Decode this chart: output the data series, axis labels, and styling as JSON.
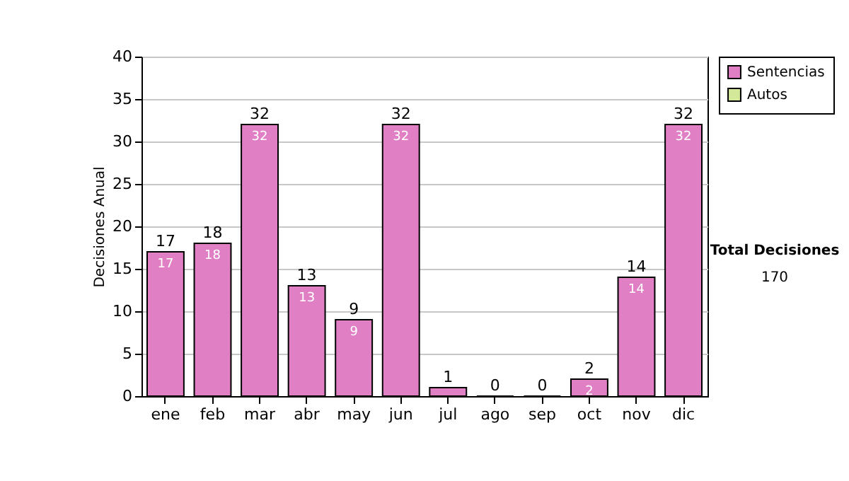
{
  "chart_data": {
    "type": "bar",
    "ylabel": "Decisiones Anual",
    "categories": [
      "ene",
      "feb",
      "mar",
      "abr",
      "may",
      "jun",
      "jul",
      "ago",
      "sep",
      "oct",
      "nov",
      "dic"
    ],
    "series": [
      {
        "name": "Sentencias",
        "color": "#e07fc4",
        "values": [
          17,
          18,
          32,
          13,
          9,
          32,
          1,
          0,
          0,
          2,
          14,
          32
        ],
        "value_labels": [
          "17",
          "18",
          "32",
          "13",
          "9",
          "32",
          null,
          null,
          null,
          "2",
          "14",
          "32"
        ]
      },
      {
        "name": "Autos",
        "color": "#d4e89a",
        "values": [
          null,
          null,
          null,
          null,
          null,
          null,
          null,
          null,
          null,
          null,
          null,
          null
        ]
      }
    ],
    "totals": [
      "17",
      "18",
      "32",
      "13",
      "9",
      "32",
      "1",
      "0",
      "0",
      "2",
      "14",
      "32"
    ],
    "ylim": [
      0,
      40
    ],
    "yticks": [
      0,
      5,
      10,
      15,
      20,
      25,
      30,
      35,
      40
    ],
    "grid": "y",
    "legend": "right",
    "annotations": [
      "Total Decisiones",
      "170"
    ]
  }
}
